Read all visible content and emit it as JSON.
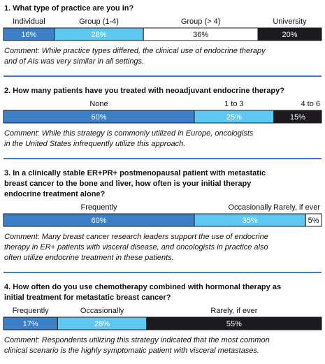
{
  "questions": [
    {
      "title": [
        "1.  What type of practice are you in?"
      ],
      "segments": [
        {
          "name": "Individual",
          "value": 16,
          "value_label": "16%",
          "color": "#3d7fc6"
        },
        {
          "name": "Group (1-4)",
          "value": 28,
          "value_label": "28%",
          "color": "#5fc8f0"
        },
        {
          "name": "Group (> 4)",
          "value": 36,
          "value_label": "36%",
          "color": "#ffffff"
        },
        {
          "name": "University",
          "value": 20,
          "value_label": "20%",
          "color": "#1c1a1f"
        }
      ],
      "comment": [
        "Comment: While practice types differed, the clinical use of endocrine therapy",
        "and of AIs was very similar in all settings."
      ]
    },
    {
      "title": [
        "2.  How many patients have you treated with neoadjuvant endocrine therapy?"
      ],
      "segments": [
        {
          "name": "None",
          "value": 60,
          "value_label": "60%",
          "color": "#3d7fc6"
        },
        {
          "name": "1 to 3",
          "value": 25,
          "value_label": "25%",
          "color": "#5fc8f0"
        },
        {
          "name": "4 to 6",
          "value": 15,
          "value_label": "15%",
          "color": "#1c1a1f"
        }
      ],
      "comment": [
        "Comment:  While this strategy is commonly utilized in Europe, oncologists",
        "in the United States infrequently utilize this approach."
      ]
    },
    {
      "title": [
        "3.  In a clinically stable ER+PR+ postmenopausal patient with metastatic",
        "breast cancer to the bone and liver, how often is your initial therapy",
        "endocrine treatment alone?"
      ],
      "segments": [
        {
          "name": "Frequently",
          "value": 60,
          "value_label": "60%",
          "color": "#3d7fc6"
        },
        {
          "name": "Occasionally",
          "value": 35,
          "value_label": "35%",
          "color": "#5fc8f0"
        },
        {
          "name": "Rarely, if ever",
          "value": 5,
          "value_label": "5%",
          "color": "#ffffff"
        }
      ],
      "comment": [
        "Comment: Many breast cancer research leaders support the use of endocrine",
        "therapy in ER+ patients with visceral disease, and oncologists in practice also",
        "often utilize endocrine treatment in these patients."
      ]
    },
    {
      "title": [
        "4.  How often do you use chemotherapy combined with hormonal therapy as",
        "initial treatment for metastatic breast cancer?"
      ],
      "segments": [
        {
          "name": "Frequently",
          "value": 17,
          "value_label": "17%",
          "color": "#3d7fc6"
        },
        {
          "name": "Occasionally",
          "value": 28,
          "value_label": "28%",
          "color": "#5fc8f0"
        },
        {
          "name": "Rarely, if ever",
          "value": 55,
          "value_label": "55%",
          "color": "#1c1a1f"
        }
      ],
      "comment": [
        "Comment:  Respondents utilizing this strategy indicated that the most common",
        "clinical scenario is the highly symptomatic patient with visceral metastases."
      ]
    }
  ]
}
